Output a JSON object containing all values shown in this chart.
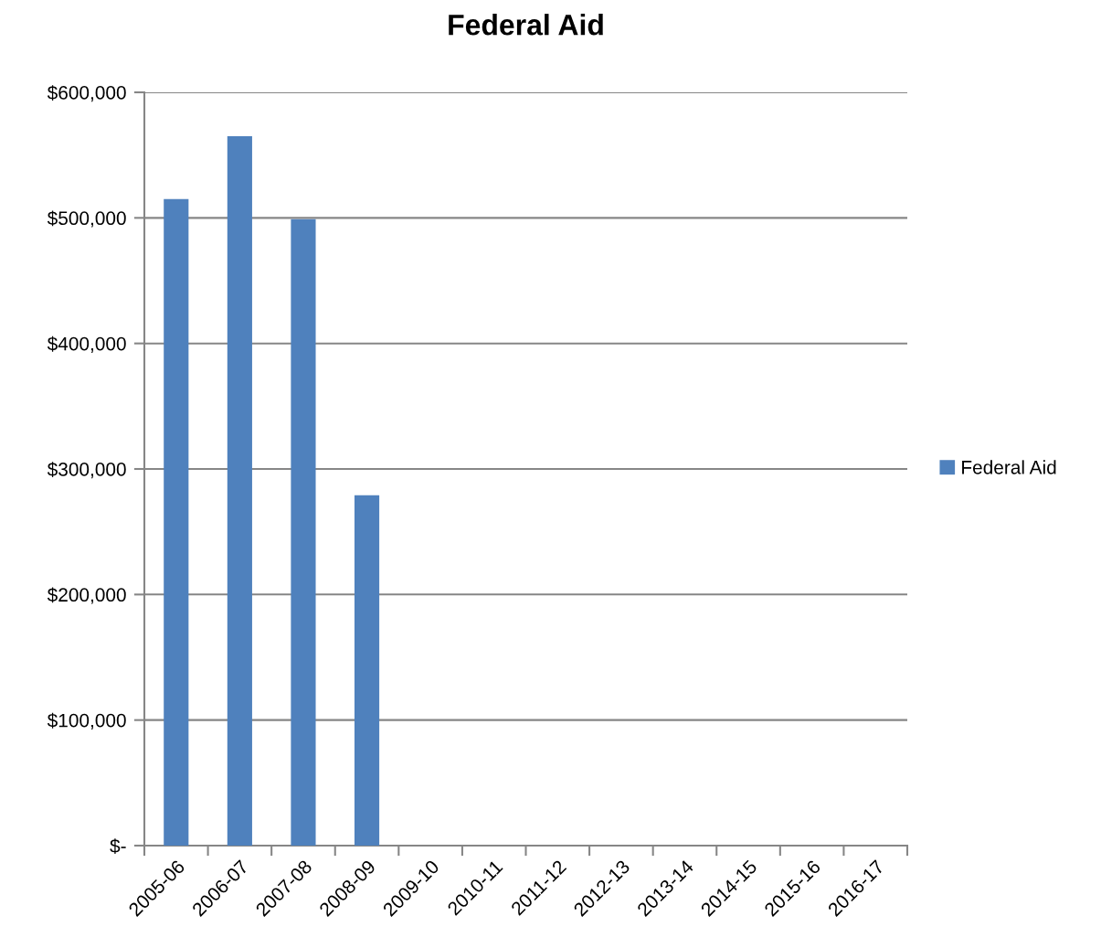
{
  "chart_data": {
    "type": "bar",
    "title": "Federal Aid",
    "categories": [
      "2005-06",
      "2006-07",
      "2007-08",
      "2008-09",
      "2009-10",
      "2010-11",
      "2011-12",
      "2012-13",
      "2013-14",
      "2014-15",
      "2015-16",
      "2016-17"
    ],
    "series": [
      {
        "name": "Federal Aid",
        "color": "#4f81bd",
        "values": [
          515000,
          565000,
          499000,
          279000,
          null,
          null,
          null,
          null,
          null,
          null,
          null,
          null
        ]
      }
    ],
    "ylim": [
      0,
      600000
    ],
    "yticks": [
      {
        "value": 0,
        "label": "$-"
      },
      {
        "value": 100000,
        "label": "$100,000"
      },
      {
        "value": 200000,
        "label": "$200,000"
      },
      {
        "value": 300000,
        "label": "$300,000"
      },
      {
        "value": 400000,
        "label": "$400,000"
      },
      {
        "value": 500000,
        "label": "$500,000"
      },
      {
        "value": 600000,
        "label": "$600,000"
      }
    ],
    "grid": "y",
    "legend": "right"
  }
}
